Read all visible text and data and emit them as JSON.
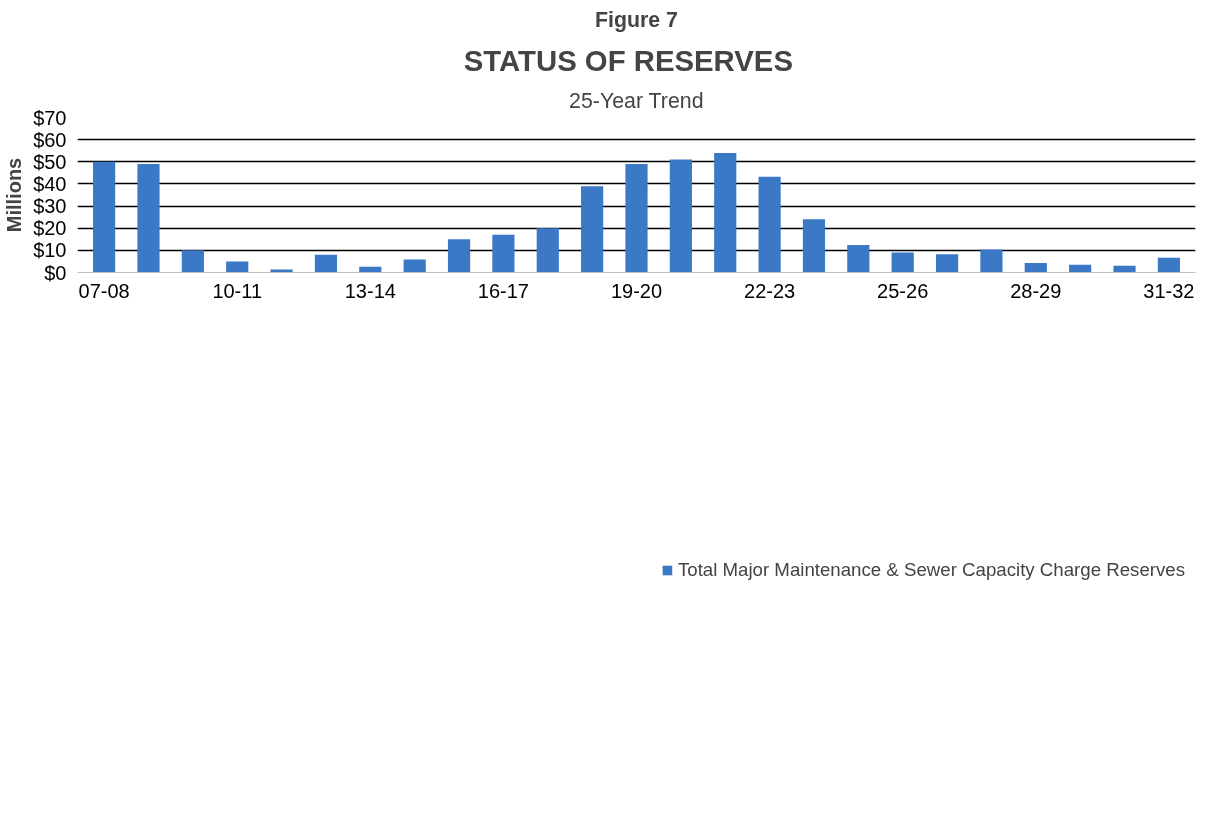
{
  "chart_data": {
    "type": "bar",
    "title": "STATUS  OF  RESERVES",
    "subtitle": "25-Year Trend",
    "ylabel": "Millions",
    "annotations": [
      "Figure 7"
    ],
    "categories": [
      "07-08",
      null,
      null,
      "10-11",
      null,
      null,
      "13-14",
      null,
      null,
      "16-17",
      null,
      null,
      "19-20",
      null,
      null,
      "22-23",
      null,
      null,
      "25-26",
      null,
      null,
      "28-29",
      null,
      null,
      "31-32"
    ],
    "series": [
      {
        "name": "Total Major Maintenance & Sewer Capacity Charge Reserves",
        "color": "#3b78c6",
        "values": [
          50,
          49,
          10,
          5,
          1.4,
          8,
          2.6,
          5.9,
          15,
          17,
          20,
          39,
          49,
          51,
          54,
          43.2,
          24,
          12.4,
          9,
          8.2,
          10.4,
          4.3,
          3.5,
          3,
          6.7
        ]
      }
    ],
    "ylim": [
      0,
      70
    ],
    "yticks": [
      {
        "value": 0,
        "label": "$0"
      },
      {
        "value": 10,
        "label": "$10"
      },
      {
        "value": 20,
        "label": "$20"
      },
      {
        "value": 30,
        "label": "$30"
      },
      {
        "value": 40,
        "label": "$40"
      },
      {
        "value": 50,
        "label": "$50"
      },
      {
        "value": 60,
        "label": "$60"
      },
      {
        "value": 70,
        "label": "$70"
      }
    ],
    "grid": "y",
    "legend": "bottom"
  }
}
